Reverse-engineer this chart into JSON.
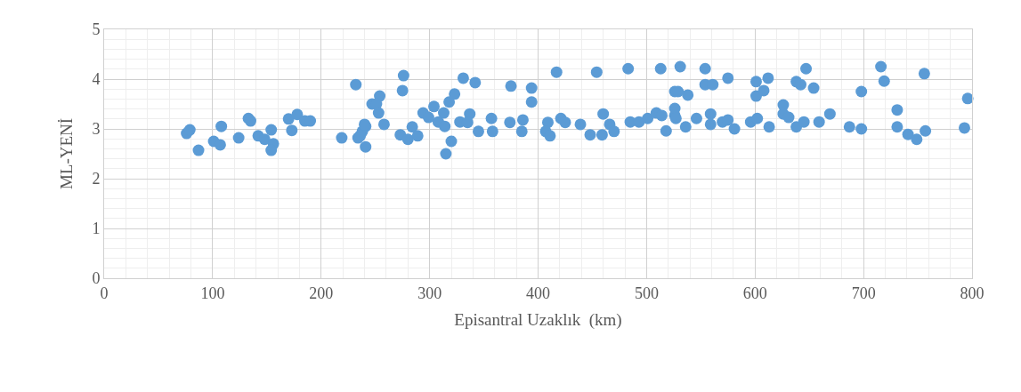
{
  "chart_data": {
    "type": "scatter",
    "xlabel": "Episantral Uzaklık  (km)",
    "ylabel": "ML-YENİ",
    "xlim": [
      0,
      800
    ],
    "xticks": [
      0,
      100,
      200,
      300,
      400,
      500,
      600,
      700,
      800
    ],
    "ylim": [
      0,
      5
    ],
    "yticks": [
      0,
      1,
      2,
      3,
      4,
      5
    ],
    "grid": true,
    "marker": "circle",
    "series": [
      {
        "color": "#5b9bd5",
        "x": [
          76,
          79,
          87,
          101,
          107,
          108,
          124,
          133,
          135,
          142,
          148,
          154,
          156,
          154,
          170,
          173,
          178,
          185,
          190,
          219,
          232,
          234,
          238,
          241,
          241,
          247,
          240,
          236,
          254,
          251,
          253,
          258,
          276,
          275,
          273,
          280,
          284,
          289,
          294,
          299,
          304,
          308,
          313,
          314,
          315,
          320,
          318,
          323,
          331,
          328,
          337,
          335,
          342,
          345,
          357,
          358,
          375,
          374,
          386,
          385,
          394,
          394,
          409,
          407,
          411,
          417,
          421,
          425,
          439,
          448,
          454,
          460,
          459,
          466,
          470,
          483,
          485,
          493,
          501,
          509,
          513,
          514,
          518,
          526,
          526,
          526,
          531,
          529,
          527,
          536,
          538,
          546,
          554,
          554,
          561,
          559,
          559,
          570,
          575,
          575,
          581,
          596,
          602,
          601,
          601,
          608,
          612,
          613,
          626,
          626,
          631,
          638,
          642,
          638,
          645,
          647,
          654,
          659,
          669,
          687,
          698,
          698,
          716,
          719,
          731,
          731,
          741,
          749,
          757,
          756,
          793,
          796
        ],
        "values": [
          2.91,
          2.98,
          2.57,
          2.75,
          2.68,
          3.05,
          2.82,
          3.21,
          3.16,
          2.86,
          2.79,
          2.98,
          2.7,
          2.57,
          3.2,
          2.97,
          3.29,
          3.16,
          3.16,
          2.82,
          3.89,
          2.82,
          2.95,
          3.05,
          2.64,
          3.5,
          3.09,
          2.86,
          3.66,
          3.5,
          3.32,
          3.09,
          4.07,
          3.77,
          2.88,
          2.79,
          3.04,
          2.86,
          3.32,
          3.23,
          3.45,
          3.14,
          3.32,
          3.05,
          2.5,
          2.75,
          3.54,
          3.7,
          4.02,
          3.14,
          3.3,
          3.13,
          3.93,
          2.95,
          3.21,
          2.95,
          3.86,
          3.13,
          3.18,
          2.95,
          3.82,
          3.54,
          3.13,
          2.95,
          2.86,
          4.14,
          3.21,
          3.13,
          3.09,
          2.88,
          4.14,
          3.3,
          2.88,
          3.09,
          2.95,
          4.21,
          3.14,
          3.14,
          3.21,
          3.32,
          4.21,
          3.27,
          2.96,
          3.75,
          3.27,
          3.41,
          4.25,
          3.75,
          3.21,
          3.04,
          3.68,
          3.21,
          4.21,
          3.89,
          3.89,
          3.3,
          3.09,
          3.14,
          3.18,
          4.02,
          3.0,
          3.14,
          3.21,
          3.95,
          3.66,
          3.77,
          4.02,
          3.04,
          3.48,
          3.3,
          3.23,
          3.95,
          3.89,
          3.04,
          3.14,
          4.21,
          3.82,
          3.14,
          3.3,
          3.04,
          3.75,
          3.0,
          4.25,
          3.96,
          3.38,
          3.04,
          2.89,
          2.79,
          2.96,
          4.11,
          3.02,
          3.61
        ]
      }
    ]
  }
}
